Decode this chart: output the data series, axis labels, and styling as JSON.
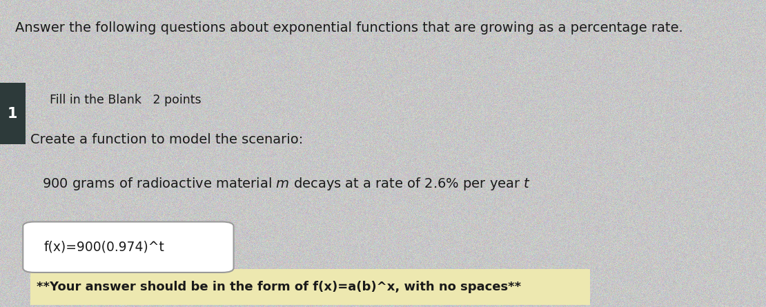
{
  "bg_color": "#c8c8c8",
  "bg_noise_alpha": 0.08,
  "title_text": "Answer the following questions about exponential functions that are growing as a percentage rate.",
  "fill_blank_label": "Fill in the Blank   2 points",
  "create_text": "Create a function to model the scenario:",
  "scenario_mathtext": "900 grams of radioactive material $m$ decays at a rate of 2.6% per year $t$",
  "answer_text": "f(x)=900(0.974)^t",
  "note_text": "**Your answer should be in the form of f(x)=a(b)^x, with no spaces**",
  "note_bg": "#ede8b0",
  "left_bar_color": "#2d3a3a",
  "number_label": "1",
  "text_color": "#1a1a1a",
  "title_fontsize": 14,
  "fill_blank_fontsize": 12.5,
  "create_fontsize": 14,
  "scenario_fontsize": 14,
  "answer_fontsize": 13.5,
  "note_fontsize": 13
}
